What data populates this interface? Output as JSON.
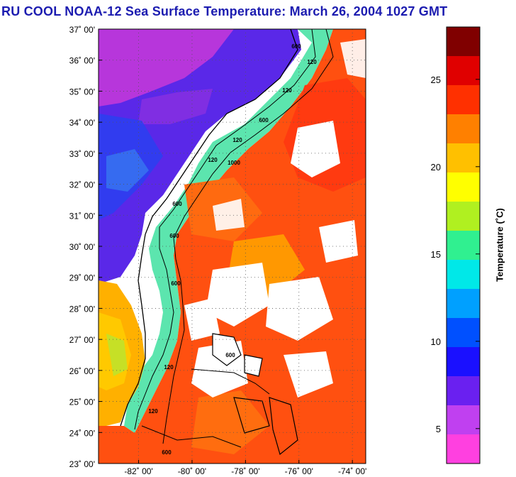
{
  "title": "RU COOL  NOAA-12  Sea Surface Temperature:  March 26, 2004 1027 GMT",
  "map": {
    "lat_labels": [
      "37˚ 00'",
      "36˚ 00'",
      "35˚ 00'",
      "34˚ 00'",
      "33˚ 00'",
      "32˚ 00'",
      "31˚ 00'",
      "30˚ 00'",
      "29˚ 00'",
      "28˚ 00'",
      "27˚ 00'",
      "26˚ 00'",
      "25˚ 00'",
      "24˚ 00'",
      "23˚ 00'"
    ],
    "lon_labels": [
      "-82˚ 00'",
      "-80˚ 00'",
      "-78˚ 00'",
      "-76˚ 00'",
      "-74˚ 00'"
    ],
    "lat_range": [
      23,
      37
    ],
    "lon_range": [
      -83.5,
      -73.5
    ],
    "lon_ticks": [
      -82,
      -80,
      -78,
      -76,
      -74
    ],
    "isobath_labels": [
      "120",
      "120",
      "600",
      "600",
      "120",
      "1000",
      "120",
      "600",
      "600",
      "600",
      "600",
      "120",
      "120",
      "600"
    ]
  },
  "colorbar": {
    "label": "Temperature (˚C)",
    "ticks": [
      "25",
      "20",
      "15",
      "10",
      "5"
    ],
    "tick_values": [
      25,
      20,
      15,
      10,
      5
    ],
    "range": [
      3,
      28
    ],
    "colors": [
      "#ff40e0",
      "#c040f0",
      "#6a20f0",
      "#1a10ff",
      "#0050ff",
      "#00a0ff",
      "#00e8e8",
      "#30f090",
      "#b0f020",
      "#ffff00",
      "#ffc000",
      "#ff8000",
      "#ff3000",
      "#e00000",
      "#800000"
    ]
  }
}
